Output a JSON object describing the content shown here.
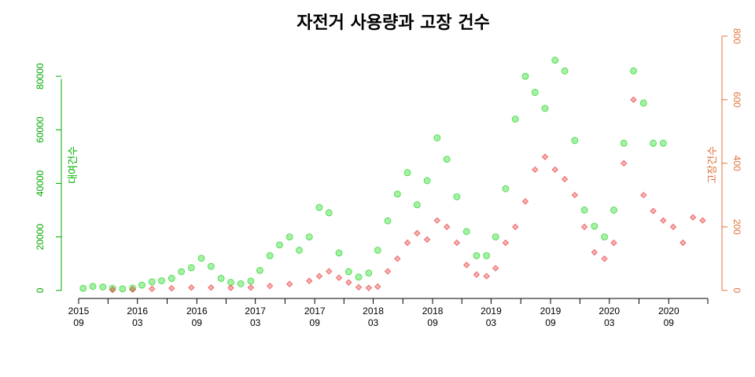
{
  "chart_data": {
    "type": "scatter",
    "title": "자전거 사용량과 고장 건수",
    "y_left_label": "대여건수",
    "y_right_label": "고장건수",
    "y_left_ticks": [
      "0",
      "20000",
      "40000",
      "60000",
      "80000"
    ],
    "y_left_range": [
      0,
      95000
    ],
    "y_right_ticks": [
      "0",
      "200",
      "400",
      "600",
      "800"
    ],
    "y_right_range": [
      0,
      800
    ],
    "x_range": [
      "2015-09-01",
      "2020-12-31"
    ],
    "x_ticks": [
      {
        "date": "2015-09-01",
        "year": "2015",
        "month": "09"
      },
      {
        "date": "2016-03-01",
        "year": "2016",
        "month": "03"
      },
      {
        "date": "2016-09-01",
        "year": "2016",
        "month": "09"
      },
      {
        "date": "2017-03-01",
        "year": "2017",
        "month": "03"
      },
      {
        "date": "2017-09-01",
        "year": "2017",
        "month": "09"
      },
      {
        "date": "2018-03-01",
        "year": "2018",
        "month": "03"
      },
      {
        "date": "2018-09-01",
        "year": "2018",
        "month": "09"
      },
      {
        "date": "2019-03-01",
        "year": "2019",
        "month": "03"
      },
      {
        "date": "2019-09-01",
        "year": "2019",
        "month": "09"
      },
      {
        "date": "2020-03-01",
        "year": "2020",
        "month": "03"
      },
      {
        "date": "2020-09-01",
        "year": "2020",
        "month": "09"
      }
    ],
    "colors": {
      "rentals": "#00d000",
      "breakdowns": "#e82020",
      "left_axis": "#00a800",
      "right_axis": "#e0703a"
    },
    "series": [
      {
        "axis": "left",
        "marker": "circle",
        "x": [
          "2015-09-15",
          "2015-10-15",
          "2015-11-15",
          "2015-12-15",
          "2016-01-15",
          "2016-02-15",
          "2016-03-15",
          "2016-04-15",
          "2016-05-15",
          "2016-06-15",
          "2016-07-15",
          "2016-08-15",
          "2016-09-15",
          "2016-10-15",
          "2016-11-15",
          "2016-12-15",
          "2017-01-15",
          "2017-02-15",
          "2017-03-15",
          "2017-04-15",
          "2017-05-15",
          "2017-06-15",
          "2017-07-15",
          "2017-08-15",
          "2017-09-15",
          "2017-10-15",
          "2017-11-15",
          "2017-12-15",
          "2018-01-15",
          "2018-02-15",
          "2018-03-15",
          "2018-04-15",
          "2018-05-15",
          "2018-06-15",
          "2018-07-15",
          "2018-08-15",
          "2018-09-15",
          "2018-10-15",
          "2018-11-15",
          "2018-12-15",
          "2019-01-15",
          "2019-02-15",
          "2019-03-15",
          "2019-04-15",
          "2019-05-15",
          "2019-06-15",
          "2019-07-15",
          "2019-08-15",
          "2019-09-15",
          "2019-10-15",
          "2019-11-15",
          "2019-12-15",
          "2020-01-15",
          "2020-02-15",
          "2020-03-15",
          "2020-04-15",
          "2020-05-15",
          "2020-06-15",
          "2020-07-15",
          "2020-08-15"
        ],
        "values": [
          800,
          1500,
          1300,
          800,
          600,
          900,
          2000,
          3200,
          3600,
          4500,
          7000,
          8500,
          12000,
          9000,
          4500,
          3000,
          2500,
          3500,
          7500,
          13000,
          17000,
          20000,
          15000,
          20000,
          31000,
          29000,
          14000,
          7000,
          5000,
          6500,
          15000,
          26000,
          36000,
          44000,
          32000,
          41000,
          57000,
          49000,
          35000,
          22000,
          13000,
          13000,
          20000,
          38000,
          64000,
          80000,
          74000,
          68000,
          86000,
          82000,
          56000,
          30000,
          24000,
          20000,
          30000,
          55000,
          82000,
          70000,
          55000,
          55000
        ]
      },
      {
        "axis": "right",
        "marker": "diamond",
        "x": [
          "2015-12-15",
          "2016-02-15",
          "2016-04-15",
          "2016-06-15",
          "2016-08-15",
          "2016-10-15",
          "2016-12-15",
          "2017-02-15",
          "2017-04-15",
          "2017-06-15",
          "2017-08-15",
          "2017-09-15",
          "2017-10-15",
          "2017-11-15",
          "2017-12-15",
          "2018-01-15",
          "2018-02-15",
          "2018-03-15",
          "2018-04-15",
          "2018-05-15",
          "2018-06-15",
          "2018-07-15",
          "2018-08-15",
          "2018-09-15",
          "2018-10-15",
          "2018-11-15",
          "2018-12-15",
          "2019-01-15",
          "2019-02-15",
          "2019-03-15",
          "2019-04-15",
          "2019-05-15",
          "2019-06-15",
          "2019-07-15",
          "2019-08-15",
          "2019-09-15",
          "2019-10-15",
          "2019-11-15",
          "2019-12-15",
          "2020-01-15",
          "2020-02-15",
          "2020-03-15",
          "2020-04-15",
          "2020-05-15",
          "2020-06-15",
          "2020-07-15",
          "2020-08-15",
          "2020-09-15",
          "2020-10-15",
          "2020-11-15",
          "2020-12-15"
        ],
        "values": [
          2,
          3,
          5,
          7,
          9,
          9,
          8,
          9,
          14,
          20,
          30,
          45,
          60,
          40,
          25,
          10,
          8,
          12,
          60,
          100,
          150,
          180,
          160,
          220,
          200,
          150,
          80,
          50,
          45,
          70,
          150,
          200,
          280,
          380,
          420,
          380,
          350,
          300,
          200,
          120,
          100,
          150,
          400,
          600,
          300,
          250,
          220,
          200,
          150,
          230,
          220
        ]
      }
    ]
  }
}
